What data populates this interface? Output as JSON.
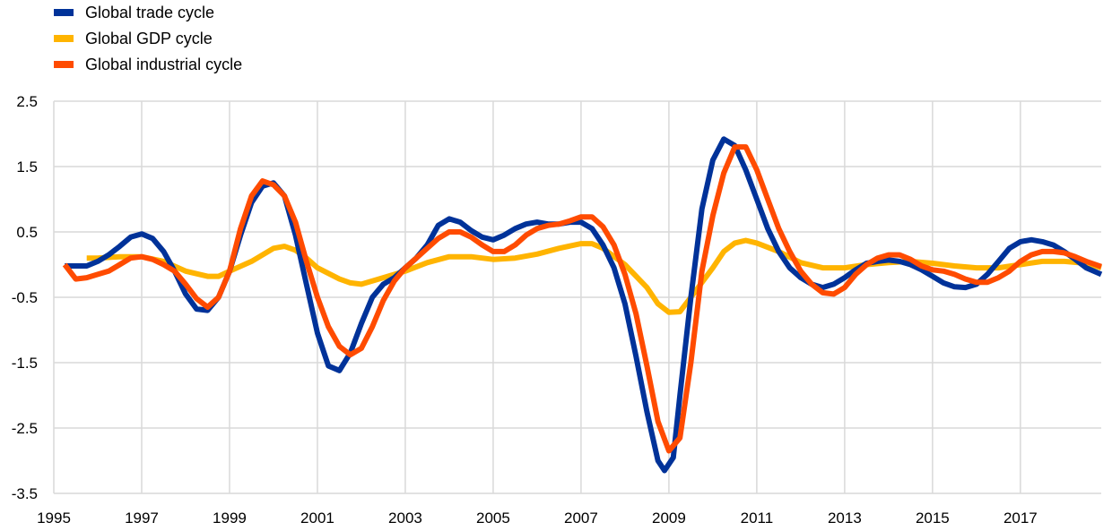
{
  "chart_data": {
    "type": "line",
    "title": "",
    "xlabel": "",
    "ylabel": "",
    "xlim": [
      1995,
      2018.84
    ],
    "ylim": [
      -3.5,
      2.5
    ],
    "grid": true,
    "legend_position": "top-left",
    "x_ticks": [
      "1995",
      "1997",
      "1999",
      "2001",
      "2003",
      "2005",
      "2007",
      "2009",
      "2011",
      "2013",
      "2015",
      "2017"
    ],
    "y_ticks": [
      "2.5",
      "1.5",
      "0.5",
      "-0.5",
      "-1.5",
      "-2.5",
      "-3.5"
    ],
    "series": [
      {
        "name": "Global trade cycle",
        "color": "#003299",
        "points": [
          [
            1995.25,
            -0.02
          ],
          [
            1995.5,
            -0.02
          ],
          [
            1995.75,
            -0.02
          ],
          [
            1996,
            0.05
          ],
          [
            1996.25,
            0.15
          ],
          [
            1996.5,
            0.28
          ],
          [
            1996.75,
            0.42
          ],
          [
            1997,
            0.47
          ],
          [
            1997.25,
            0.4
          ],
          [
            1997.5,
            0.2
          ],
          [
            1997.75,
            -0.1
          ],
          [
            1998,
            -0.45
          ],
          [
            1998.25,
            -0.68
          ],
          [
            1998.5,
            -0.7
          ],
          [
            1998.75,
            -0.5
          ],
          [
            1999,
            -0.1
          ],
          [
            1999.25,
            0.45
          ],
          [
            1999.5,
            0.95
          ],
          [
            1999.75,
            1.2
          ],
          [
            2000,
            1.25
          ],
          [
            2000.25,
            1.05
          ],
          [
            2000.5,
            0.45
          ],
          [
            2000.75,
            -0.3
          ],
          [
            2001,
            -1.05
          ],
          [
            2001.25,
            -1.55
          ],
          [
            2001.5,
            -1.62
          ],
          [
            2001.75,
            -1.35
          ],
          [
            2002,
            -0.9
          ],
          [
            2002.25,
            -0.5
          ],
          [
            2002.5,
            -0.3
          ],
          [
            2002.75,
            -0.2
          ],
          [
            2003,
            -0.05
          ],
          [
            2003.25,
            0.1
          ],
          [
            2003.5,
            0.3
          ],
          [
            2003.75,
            0.6
          ],
          [
            2004,
            0.7
          ],
          [
            2004.25,
            0.65
          ],
          [
            2004.5,
            0.52
          ],
          [
            2004.75,
            0.42
          ],
          [
            2005,
            0.38
          ],
          [
            2005.25,
            0.45
          ],
          [
            2005.5,
            0.55
          ],
          [
            2005.75,
            0.62
          ],
          [
            2006,
            0.65
          ],
          [
            2006.25,
            0.62
          ],
          [
            2006.5,
            0.62
          ],
          [
            2006.75,
            0.65
          ],
          [
            2007,
            0.65
          ],
          [
            2007.25,
            0.55
          ],
          [
            2007.5,
            0.3
          ],
          [
            2007.75,
            -0.05
          ],
          [
            2008,
            -0.6
          ],
          [
            2008.25,
            -1.4
          ],
          [
            2008.5,
            -2.25
          ],
          [
            2008.75,
            -3.0
          ],
          [
            2008.9,
            -3.15
          ],
          [
            2009.1,
            -2.95
          ],
          [
            2009.25,
            -2.0
          ],
          [
            2009.5,
            -0.5
          ],
          [
            2009.75,
            0.85
          ],
          [
            2010,
            1.6
          ],
          [
            2010.25,
            1.92
          ],
          [
            2010.5,
            1.82
          ],
          [
            2010.75,
            1.45
          ],
          [
            2011,
            1.0
          ],
          [
            2011.25,
            0.55
          ],
          [
            2011.5,
            0.2
          ],
          [
            2011.75,
            -0.05
          ],
          [
            2012,
            -0.2
          ],
          [
            2012.25,
            -0.3
          ],
          [
            2012.5,
            -0.35
          ],
          [
            2012.75,
            -0.3
          ],
          [
            2013,
            -0.2
          ],
          [
            2013.25,
            -0.08
          ],
          [
            2013.5,
            0.02
          ],
          [
            2013.75,
            0.05
          ],
          [
            2014,
            0.07
          ],
          [
            2014.25,
            0.05
          ],
          [
            2014.5,
            0.0
          ],
          [
            2014.75,
            -0.08
          ],
          [
            2015,
            -0.18
          ],
          [
            2015.25,
            -0.28
          ],
          [
            2015.5,
            -0.34
          ],
          [
            2015.75,
            -0.35
          ],
          [
            2016,
            -0.3
          ],
          [
            2016.25,
            -0.15
          ],
          [
            2016.5,
            0.05
          ],
          [
            2016.75,
            0.25
          ],
          [
            2017,
            0.35
          ],
          [
            2017.25,
            0.38
          ],
          [
            2017.5,
            0.35
          ],
          [
            2017.75,
            0.3
          ],
          [
            2018,
            0.2
          ],
          [
            2018.25,
            0.08
          ],
          [
            2018.5,
            -0.05
          ],
          [
            2018.84,
            -0.15
          ]
        ]
      },
      {
        "name": "Global GDP cycle",
        "color": "#FFB400",
        "points": [
          [
            1995.75,
            0.1
          ],
          [
            1996,
            0.1
          ],
          [
            1996.5,
            0.12
          ],
          [
            1997,
            0.12
          ],
          [
            1997.5,
            0.05
          ],
          [
            1998,
            -0.1
          ],
          [
            1998.5,
            -0.18
          ],
          [
            1998.75,
            -0.18
          ],
          [
            1999,
            -0.1
          ],
          [
            1999.5,
            0.05
          ],
          [
            2000,
            0.25
          ],
          [
            2000.25,
            0.28
          ],
          [
            2000.5,
            0.22
          ],
          [
            2000.75,
            0.1
          ],
          [
            2001,
            -0.05
          ],
          [
            2001.5,
            -0.22
          ],
          [
            2001.75,
            -0.28
          ],
          [
            2002,
            -0.3
          ],
          [
            2002.5,
            -0.2
          ],
          [
            2003,
            -0.1
          ],
          [
            2003.5,
            0.03
          ],
          [
            2004,
            0.12
          ],
          [
            2004.5,
            0.12
          ],
          [
            2005,
            0.08
          ],
          [
            2005.5,
            0.1
          ],
          [
            2006,
            0.16
          ],
          [
            2006.5,
            0.25
          ],
          [
            2007,
            0.32
          ],
          [
            2007.25,
            0.32
          ],
          [
            2007.5,
            0.25
          ],
          [
            2008,
            0.0
          ],
          [
            2008.5,
            -0.35
          ],
          [
            2008.75,
            -0.6
          ],
          [
            2009,
            -0.73
          ],
          [
            2009.25,
            -0.72
          ],
          [
            2009.5,
            -0.5
          ],
          [
            2010,
            -0.05
          ],
          [
            2010.25,
            0.2
          ],
          [
            2010.5,
            0.33
          ],
          [
            2010.75,
            0.37
          ],
          [
            2011,
            0.33
          ],
          [
            2011.5,
            0.2
          ],
          [
            2012,
            0.03
          ],
          [
            2012.5,
            -0.05
          ],
          [
            2013,
            -0.05
          ],
          [
            2013.5,
            0.0
          ],
          [
            2014,
            0.03
          ],
          [
            2014.5,
            0.05
          ],
          [
            2015,
            0.02
          ],
          [
            2015.5,
            -0.02
          ],
          [
            2016,
            -0.05
          ],
          [
            2016.5,
            -0.05
          ],
          [
            2017,
            0.0
          ],
          [
            2017.5,
            0.05
          ],
          [
            2018,
            0.05
          ],
          [
            2018.5,
            0.02
          ],
          [
            2018.84,
            -0.05
          ]
        ]
      },
      {
        "name": "Global industrial cycle",
        "color": "#FF4B00",
        "points": [
          [
            1995.25,
            0.0
          ],
          [
            1995.5,
            -0.22
          ],
          [
            1995.75,
            -0.2
          ],
          [
            1996,
            -0.15
          ],
          [
            1996.25,
            -0.1
          ],
          [
            1996.5,
            0.0
          ],
          [
            1996.75,
            0.1
          ],
          [
            1997,
            0.12
          ],
          [
            1997.25,
            0.08
          ],
          [
            1997.5,
            0.0
          ],
          [
            1997.75,
            -0.1
          ],
          [
            1998,
            -0.3
          ],
          [
            1998.25,
            -0.52
          ],
          [
            1998.5,
            -0.65
          ],
          [
            1998.75,
            -0.5
          ],
          [
            1999,
            -0.1
          ],
          [
            1999.25,
            0.55
          ],
          [
            1999.5,
            1.05
          ],
          [
            1999.75,
            1.28
          ],
          [
            2000,
            1.22
          ],
          [
            2000.25,
            1.05
          ],
          [
            2000.5,
            0.65
          ],
          [
            2000.75,
            0.05
          ],
          [
            2001,
            -0.5
          ],
          [
            2001.25,
            -0.95
          ],
          [
            2001.5,
            -1.25
          ],
          [
            2001.75,
            -1.38
          ],
          [
            2002,
            -1.28
          ],
          [
            2002.25,
            -0.95
          ],
          [
            2002.5,
            -0.55
          ],
          [
            2002.75,
            -0.25
          ],
          [
            2003,
            -0.05
          ],
          [
            2003.25,
            0.1
          ],
          [
            2003.5,
            0.25
          ],
          [
            2003.75,
            0.4
          ],
          [
            2004,
            0.5
          ],
          [
            2004.25,
            0.5
          ],
          [
            2004.5,
            0.42
          ],
          [
            2004.75,
            0.3
          ],
          [
            2005,
            0.2
          ],
          [
            2005.25,
            0.2
          ],
          [
            2005.5,
            0.3
          ],
          [
            2005.75,
            0.45
          ],
          [
            2006,
            0.55
          ],
          [
            2006.25,
            0.6
          ],
          [
            2006.5,
            0.62
          ],
          [
            2006.75,
            0.67
          ],
          [
            2007,
            0.73
          ],
          [
            2007.25,
            0.73
          ],
          [
            2007.5,
            0.58
          ],
          [
            2007.75,
            0.3
          ],
          [
            2008,
            -0.15
          ],
          [
            2008.25,
            -0.75
          ],
          [
            2008.5,
            -1.55
          ],
          [
            2008.75,
            -2.4
          ],
          [
            2009,
            -2.85
          ],
          [
            2009.25,
            -2.65
          ],
          [
            2009.5,
            -1.5
          ],
          [
            2009.75,
            -0.1
          ],
          [
            2010,
            0.75
          ],
          [
            2010.25,
            1.4
          ],
          [
            2010.5,
            1.8
          ],
          [
            2010.75,
            1.8
          ],
          [
            2011,
            1.45
          ],
          [
            2011.25,
            1.0
          ],
          [
            2011.5,
            0.55
          ],
          [
            2011.75,
            0.2
          ],
          [
            2012,
            -0.1
          ],
          [
            2012.25,
            -0.3
          ],
          [
            2012.5,
            -0.43
          ],
          [
            2012.75,
            -0.45
          ],
          [
            2013,
            -0.35
          ],
          [
            2013.25,
            -0.15
          ],
          [
            2013.5,
            0.0
          ],
          [
            2013.75,
            0.1
          ],
          [
            2014,
            0.15
          ],
          [
            2014.25,
            0.15
          ],
          [
            2014.5,
            0.08
          ],
          [
            2014.75,
            -0.02
          ],
          [
            2015,
            -0.08
          ],
          [
            2015.25,
            -0.1
          ],
          [
            2015.5,
            -0.15
          ],
          [
            2015.75,
            -0.22
          ],
          [
            2016,
            -0.27
          ],
          [
            2016.25,
            -0.27
          ],
          [
            2016.5,
            -0.2
          ],
          [
            2016.75,
            -0.1
          ],
          [
            2017,
            0.05
          ],
          [
            2017.25,
            0.15
          ],
          [
            2017.5,
            0.2
          ],
          [
            2017.75,
            0.2
          ],
          [
            2018,
            0.18
          ],
          [
            2018.25,
            0.12
          ],
          [
            2018.5,
            0.05
          ],
          [
            2018.84,
            -0.03
          ]
        ]
      }
    ]
  }
}
